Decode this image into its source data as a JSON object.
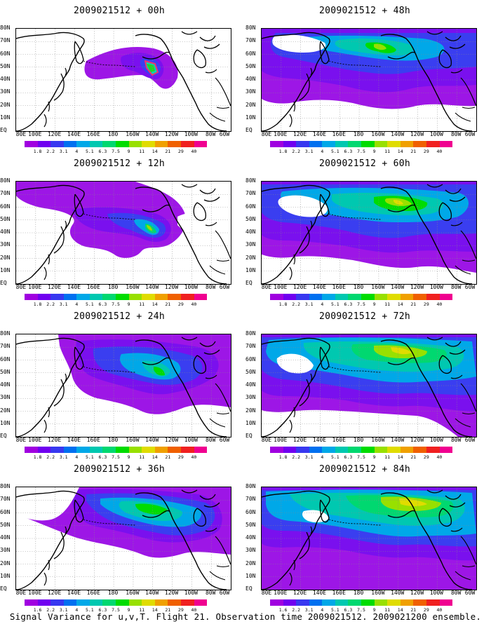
{
  "colorbar": {
    "labels": [
      "1.8",
      "2.2",
      "3.1",
      "4",
      "5.1",
      "6.3",
      "7.5",
      "9",
      "11",
      "14",
      "21",
      "29",
      "40"
    ],
    "labels_alt": [
      "1.6",
      "2.2",
      "3.1",
      "4",
      "5.1",
      "6.3",
      "7.5",
      "9",
      "11",
      "14",
      "21",
      "29",
      "40"
    ],
    "colors": [
      "#a000e0",
      "#7000f0",
      "#3838f0",
      "#0070f0",
      "#00a8e8",
      "#00c8b0",
      "#00d870",
      "#00dc00",
      "#98e000",
      "#e0dc00",
      "#f0a000",
      "#f06000",
      "#f02020",
      "#f00090"
    ]
  },
  "lon_labels": [
    "80E",
    "100E",
    "120E",
    "140E",
    "160E",
    "180",
    "160W",
    "140W",
    "120W",
    "100W",
    "80W",
    "60W"
  ],
  "lat_labels": [
    "80N",
    "70N",
    "60N",
    "50N",
    "40N",
    "30N",
    "20N",
    "10N",
    "EQ"
  ],
  "panels": [
    {
      "id": "p00",
      "title": "2009021512 + 00h",
      "cbar_alt": false
    },
    {
      "id": "p48",
      "title": "2009021512 + 48h",
      "cbar_alt": false
    },
    {
      "id": "p12",
      "title": "2009021512 + 12h",
      "cbar_alt": false
    },
    {
      "id": "p60",
      "title": "2009021512 + 60h",
      "cbar_alt": false
    },
    {
      "id": "p24",
      "title": "2009021512 + 24h",
      "cbar_alt": false
    },
    {
      "id": "p72",
      "title": "2009021512 + 72h",
      "cbar_alt": false
    },
    {
      "id": "p36",
      "title": "2009021512 + 36h",
      "cbar_alt": true
    },
    {
      "id": "p84",
      "title": "2009021512 + 84h",
      "cbar_alt": true
    }
  ],
  "caption": "Signal Variance for u,v,T. Flight 21. Observation time 2009021512. 2009021200 ensemble."
}
